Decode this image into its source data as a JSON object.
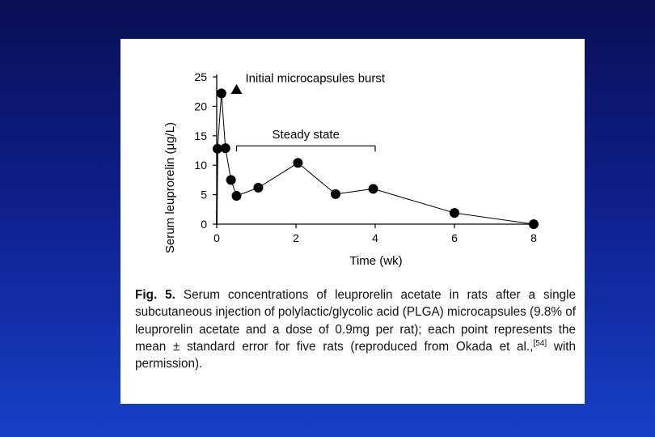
{
  "chart_data": {
    "type": "line",
    "ylabel": "Serum leuprorelin (μg/L)",
    "xlabel": "Time (wk)",
    "xlim": [
      0,
      8
    ],
    "ylim": [
      0,
      25
    ],
    "x_ticks": [
      "0",
      "2",
      "4",
      "6",
      "8"
    ],
    "y_ticks": [
      "0",
      "5",
      "10",
      "15",
      "20",
      "25"
    ],
    "grid": false,
    "series": [
      {
        "x": [
          0.02,
          0.12,
          0.22,
          0.36,
          0.5,
          1.05,
          2.05,
          3.0,
          3.95,
          6.0,
          8.0
        ],
        "y": [
          12.8,
          22.2,
          12.9,
          7.5,
          4.8,
          6.2,
          10.4,
          5.1,
          6.0,
          1.9,
          0.0
        ]
      }
    ],
    "initial_drop": [
      [
        0,
        0
      ],
      [
        0.02,
        12.8
      ]
    ],
    "annotations": {
      "burst_label": "Initial microcapsules burst",
      "burst_marker": {
        "x": 0.5,
        "y": 22.8
      },
      "steady_label": "Steady state",
      "steady_range": [
        0.5,
        4.0
      ],
      "steady_y": 13.3
    },
    "colors": {
      "line": "#000000",
      "marker": "#000000"
    }
  },
  "caption": {
    "label": "Fig. 5.",
    "text_1": "Serum concentrations of leuprorelin acetate in rats after a single subcutaneous injection of polylactic/glycolic acid (PLGA) microcapsules (9.8% of leuprorelin acetate and a dose of 0.9mg per rat); each point represents the mean ± standard error for five rats (reproduced from Okada et al.,",
    "ref": "[54]",
    "text_2": "with permission)."
  }
}
